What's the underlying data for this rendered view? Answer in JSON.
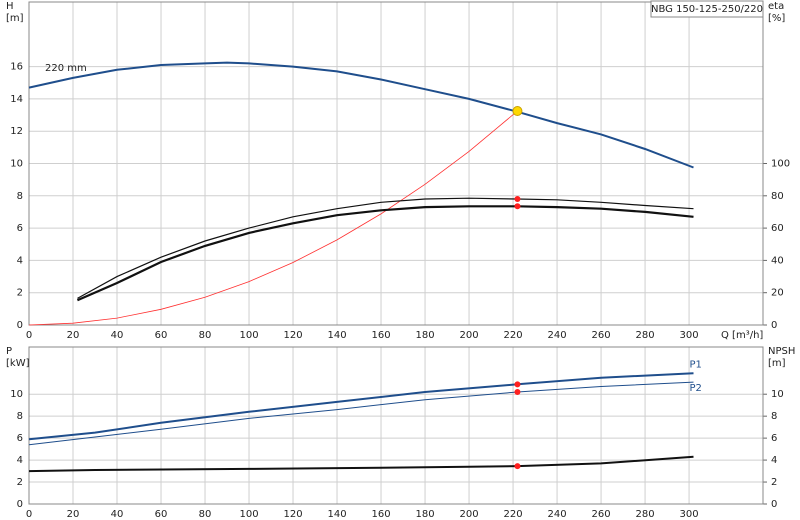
{
  "chart_data": [
    {
      "type": "line",
      "title": "NBG 150-125-250/220",
      "y_label": [
        "H",
        "[m]"
      ],
      "y2_label": [
        "eta",
        "[%]"
      ],
      "x_label": "Q [m³/h]",
      "annotation": "220 mm",
      "xlim": [
        0,
        333.6
      ],
      "xticks": [
        0,
        20,
        40,
        60,
        80,
        100,
        120,
        140,
        160,
        180,
        200,
        220,
        240,
        260,
        280,
        300
      ],
      "ylim": [
        0,
        20
      ],
      "yticks": [
        0,
        2,
        4,
        6,
        8,
        10,
        12,
        14,
        16
      ],
      "y2lim": [
        0,
        200
      ],
      "y2ticks": [
        0,
        20,
        40,
        60,
        80,
        100
      ],
      "grid": true,
      "series": [
        {
          "color": "#1f4e8c",
          "width": 2,
          "x": [
            0,
            20,
            40,
            60,
            80,
            90,
            100,
            120,
            140,
            160,
            180,
            200,
            222,
            240,
            260,
            280,
            302
          ],
          "values": [
            14.7,
            15.3,
            15.8,
            16.1,
            16.2,
            16.25,
            16.2,
            16.0,
            15.7,
            15.2,
            14.6,
            14.0,
            13.2,
            12.5,
            11.8,
            10.9,
            9.75
          ]
        },
        {
          "color": "#ff3030",
          "width": 0.8,
          "x": [
            0,
            20,
            40,
            60,
            80,
            100,
            120,
            140,
            160,
            180,
            200,
            222
          ],
          "values": [
            0,
            0.11,
            0.43,
            0.97,
            1.72,
            2.69,
            3.87,
            5.27,
            6.88,
            8.71,
            10.75,
            13.25
          ]
        },
        {
          "color": "#111111",
          "width": 1.2,
          "axis": "y2",
          "x": [
            22,
            40,
            60,
            80,
            100,
            120,
            140,
            160,
            180,
            200,
            222,
            240,
            260,
            280,
            302
          ],
          "values": [
            16.5,
            30,
            42,
            52,
            60,
            67,
            72,
            76,
            78,
            78.5,
            78,
            77.5,
            76,
            74,
            72
          ]
        },
        {
          "color": "#111111",
          "width": 2.2,
          "axis": "y2",
          "x": [
            22,
            40,
            60,
            80,
            100,
            120,
            140,
            160,
            180,
            200,
            222,
            240,
            260,
            280,
            302
          ],
          "values": [
            15.3,
            26,
            39,
            49,
            57,
            63,
            68,
            71,
            73,
            73.5,
            73.5,
            73,
            72,
            70,
            67
          ]
        }
      ],
      "markers": [
        {
          "x": 222,
          "y": 13.25,
          "color": "#ffd800"
        },
        {
          "x": 222,
          "y": 78,
          "color": "#ff2020",
          "axis": "y2"
        },
        {
          "x": 222,
          "y": 73.5,
          "color": "#ff2020",
          "axis": "y2"
        }
      ]
    },
    {
      "type": "line",
      "y_label": [
        "P",
        "[kW]"
      ],
      "y2_label": [
        "NPSH",
        "[m]"
      ],
      "xlim": [
        0,
        333.6
      ],
      "xticks": [
        0,
        20,
        40,
        60,
        80,
        100,
        120,
        140,
        160,
        180,
        200,
        220,
        240,
        260,
        280,
        300
      ],
      "ylim": [
        0,
        14.3
      ],
      "yticks": [
        0,
        2,
        4,
        6,
        8,
        10
      ],
      "y2lim": [
        0,
        14.3
      ],
      "y2ticks": [
        0,
        2,
        4,
        6,
        8,
        10
      ],
      "grid": true,
      "series": [
        {
          "name": "P1",
          "color": "#1f4e8c",
          "width": 2,
          "x": [
            0,
            30,
            60,
            100,
            140,
            180,
            222,
            260,
            302
          ],
          "values": [
            5.9,
            6.5,
            7.4,
            8.4,
            9.3,
            10.2,
            10.9,
            11.5,
            11.9
          ]
        },
        {
          "name": "P2",
          "color": "#1f4e8c",
          "width": 1,
          "x": [
            0,
            30,
            60,
            100,
            140,
            180,
            222,
            260,
            302
          ],
          "values": [
            5.4,
            6.1,
            6.8,
            7.8,
            8.6,
            9.5,
            10.2,
            10.7,
            11.1
          ]
        },
        {
          "color": "#111111",
          "width": 2,
          "axis": "y2",
          "x": [
            0,
            30,
            100,
            160,
            200,
            222,
            260,
            302
          ],
          "values": [
            3.0,
            3.1,
            3.2,
            3.3,
            3.4,
            3.45,
            3.7,
            4.3
          ]
        }
      ],
      "markers": [
        {
          "x": 222,
          "y": 10.9,
          "color": "#ff2020"
        },
        {
          "x": 222,
          "y": 10.2,
          "color": "#ff2020"
        },
        {
          "x": 222,
          "y": 3.45,
          "color": "#ff2020",
          "axis": "y2"
        }
      ]
    }
  ]
}
